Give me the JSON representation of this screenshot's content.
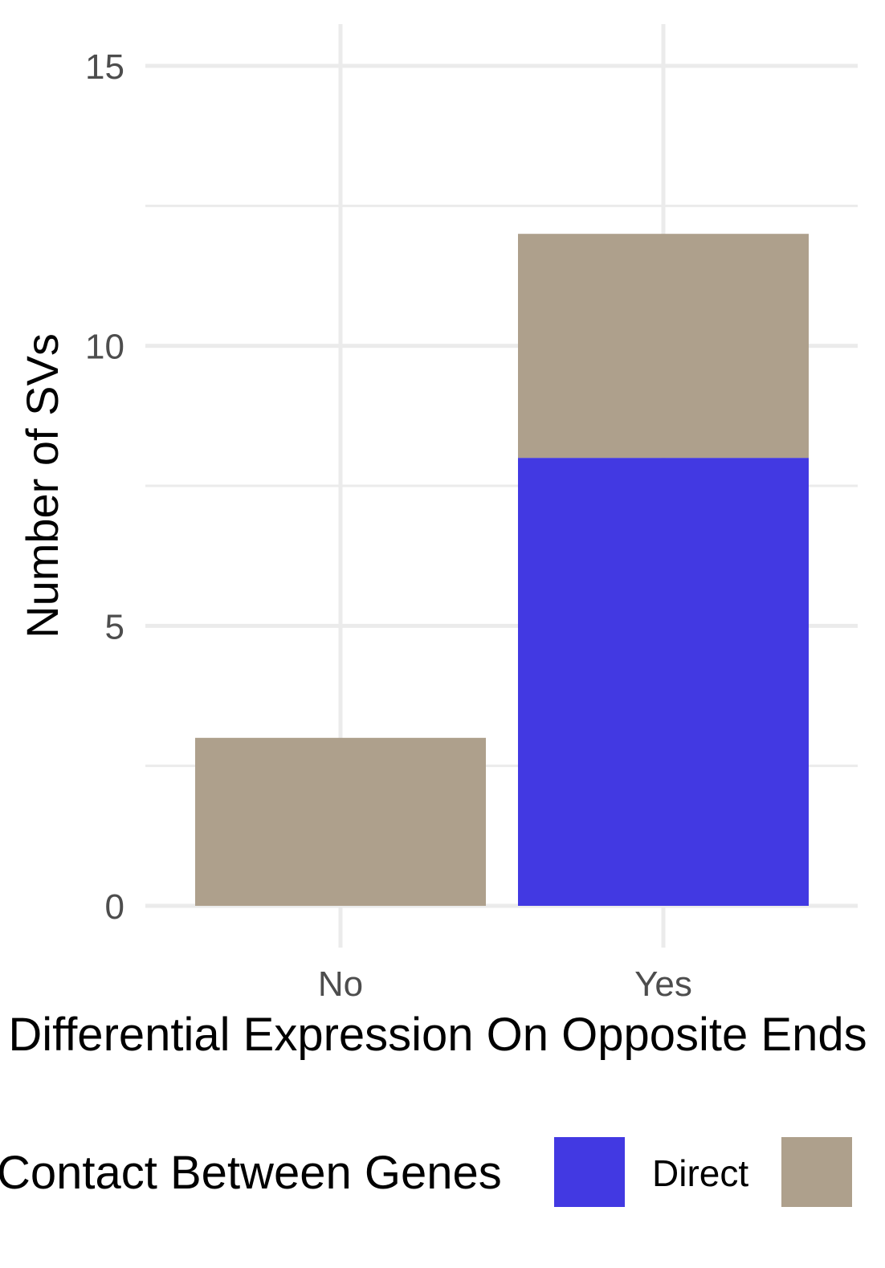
{
  "chart_data": {
    "type": "bar",
    "stacked": true,
    "categories": [
      "No",
      "Yes"
    ],
    "series": [
      {
        "name": "Direct",
        "values": [
          0,
          8
        ],
        "color": "#4239E2"
      },
      {
        "name": "",
        "values": [
          3,
          4
        ],
        "color": "#AEA08C"
      }
    ],
    "xlabel": "Differential Expression On Opposite Ends",
    "ylabel": "Number of SVs",
    "ylim": [
      0,
      15
    ],
    "yticks": [
      "0",
      "5",
      "10",
      "15"
    ],
    "grid": true,
    "legend": {
      "title": "Contact Between Genes",
      "position": "bottom"
    }
  },
  "colors": {
    "grid": "#EBEBEB",
    "tick_text": "#4D4D4D",
    "axis_title": "#000000"
  }
}
